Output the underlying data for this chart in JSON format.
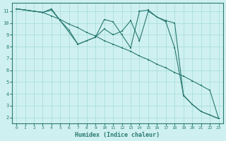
{
  "xlabel": "Humidex (Indice chaleur)",
  "bg_color": "#cff0f0",
  "grid_color": "#aadddd",
  "line_color": "#2a7a72",
  "xlim": [
    -0.5,
    23.5
  ],
  "ylim": [
    1.5,
    11.7
  ],
  "xticks": [
    0,
    1,
    2,
    3,
    4,
    5,
    6,
    7,
    8,
    9,
    10,
    11,
    12,
    13,
    14,
    15,
    16,
    17,
    18,
    19,
    20,
    21,
    22,
    23
  ],
  "yticks": [
    2,
    3,
    4,
    5,
    6,
    7,
    8,
    9,
    10,
    11
  ],
  "line1_x": [
    0,
    1,
    2,
    3,
    4,
    5,
    6,
    7,
    8,
    9,
    10,
    11,
    12,
    13,
    14,
    15,
    16,
    17,
    18,
    19,
    20,
    21,
    22,
    23
  ],
  "line1_y": [
    11.2,
    11.1,
    11.0,
    10.9,
    10.6,
    10.3,
    9.9,
    9.6,
    9.2,
    8.9,
    8.5,
    8.2,
    7.9,
    7.6,
    7.2,
    6.9,
    6.5,
    6.2,
    5.8,
    5.5,
    5.1,
    4.7,
    4.3,
    1.9
  ],
  "line2_x": [
    0,
    1,
    2,
    3,
    4,
    7,
    8,
    9,
    10,
    11,
    12,
    13,
    14,
    15,
    16,
    17,
    18,
    19,
    20,
    21,
    22,
    23
  ],
  "line2_y": [
    11.2,
    11.1,
    11.0,
    10.9,
    11.2,
    8.2,
    8.5,
    8.8,
    10.3,
    10.1,
    9.0,
    7.9,
    11.0,
    11.1,
    10.5,
    10.1,
    7.9,
    3.9,
    3.1,
    2.5,
    2.2,
    1.9
  ],
  "line3_x": [
    0,
    1,
    2,
    3,
    4,
    5,
    6,
    7,
    8,
    9,
    10,
    11,
    12,
    13,
    14,
    15,
    16,
    17,
    18,
    19,
    20,
    21,
    22,
    23
  ],
  "line3_y": [
    11.2,
    11.1,
    11.0,
    10.9,
    11.1,
    10.2,
    9.4,
    8.2,
    8.5,
    8.8,
    9.5,
    9.0,
    9.3,
    10.2,
    8.5,
    11.0,
    10.5,
    10.2,
    10.0,
    3.85,
    3.1,
    2.5,
    2.2,
    1.9
  ]
}
